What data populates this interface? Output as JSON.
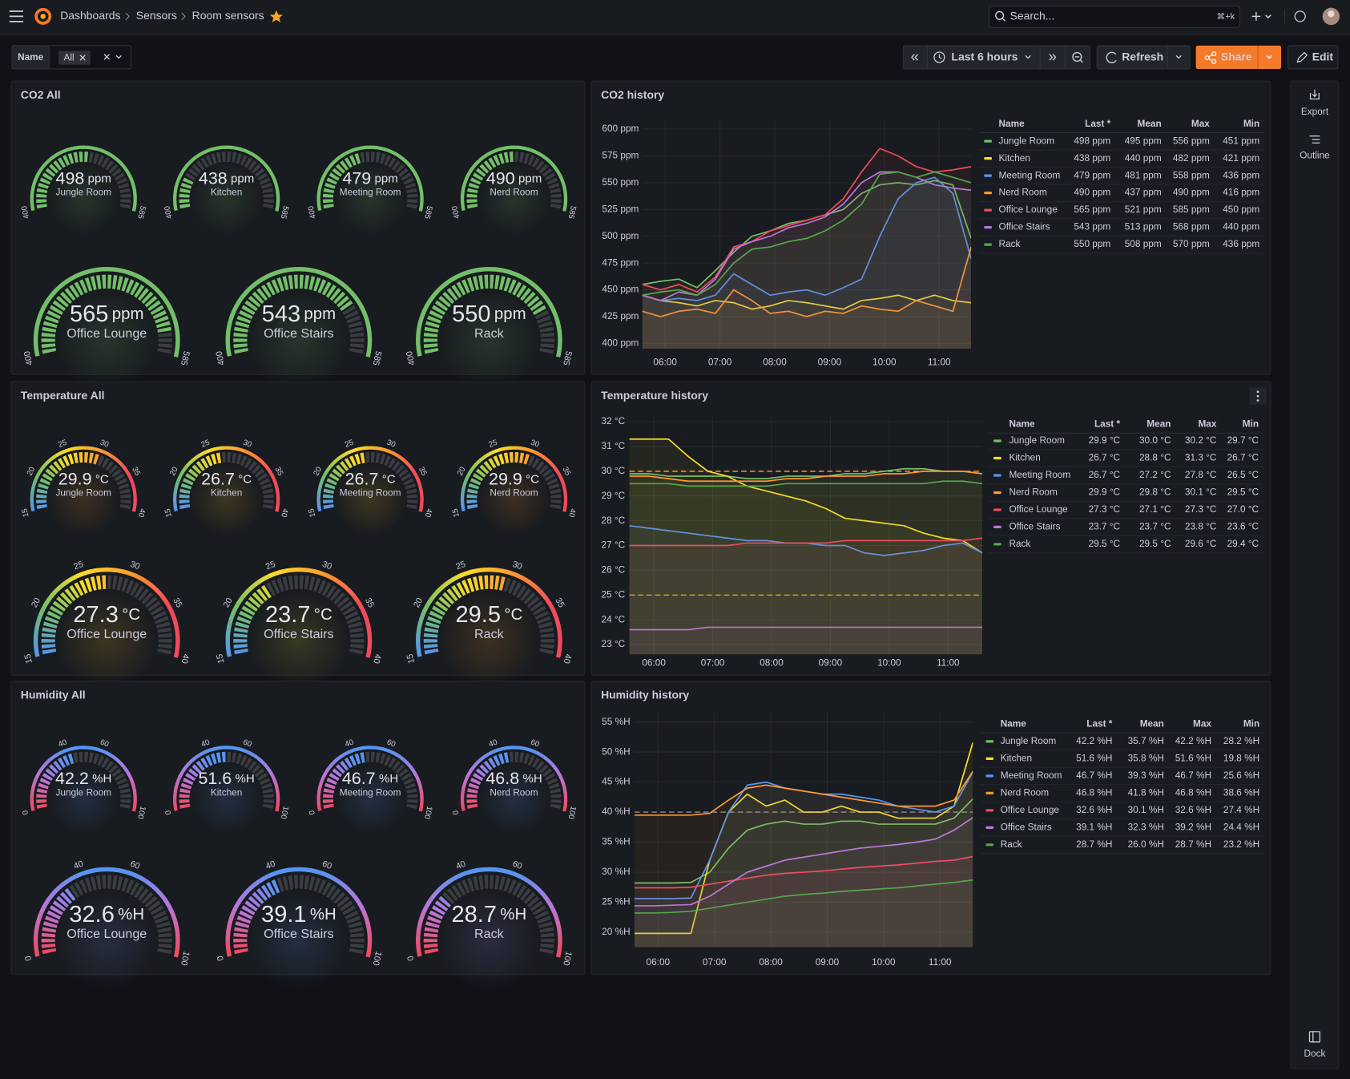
{
  "header": {
    "breadcrumbs": [
      "Dashboards",
      "Sensors",
      "Room sensors"
    ],
    "search": "Search...",
    "shortcut": "⌘+k"
  },
  "toolbar": {
    "variable": "Name",
    "variable_value": "All",
    "time_range": "Last 6 hours",
    "refresh": "Refresh",
    "share": "Share",
    "edit": "Edit"
  },
  "sidebar": {
    "export": "Export",
    "outline": "Outline",
    "dock": "Dock"
  },
  "gauge_panels": [
    {
      "title": "CO2 All",
      "unit": "ppm",
      "range": [
        400,
        585
      ],
      "ticks": [
        400,
        585
      ],
      "colors": [
        "#73bf69"
      ],
      "gauges": [
        {
          "name": "Jungle Room",
          "value": 498
        },
        {
          "name": "Kitchen",
          "value": 438
        },
        {
          "name": "Meeting Room",
          "value": 479
        },
        {
          "name": "Nerd Room",
          "value": 490
        },
        {
          "name": "Office Lounge",
          "value": 565
        },
        {
          "name": "Office Stairs",
          "value": 543
        },
        {
          "name": "Rack",
          "value": 550
        }
      ]
    },
    {
      "title": "Temperature All",
      "unit": "°C",
      "range": [
        15,
        40
      ],
      "ticks": [
        15,
        20,
        25,
        30,
        35,
        40
      ],
      "colors": [
        "#5794f2",
        "#73bf69",
        "#fade2a",
        "#ff9830",
        "#f2495c",
        "#f2495c"
      ],
      "gauges": [
        {
          "name": "Jungle Room",
          "value": 29.9
        },
        {
          "name": "Kitchen",
          "value": 26.7
        },
        {
          "name": "Meeting Room",
          "value": 26.7
        },
        {
          "name": "Nerd Room",
          "value": 29.9
        },
        {
          "name": "Office Lounge",
          "value": 27.3
        },
        {
          "name": "Office Stairs",
          "value": 23.7
        },
        {
          "name": "Rack",
          "value": 29.5
        }
      ]
    },
    {
      "title": "Humidity All",
      "unit": "%H",
      "range": [
        0,
        100
      ],
      "ticks": [
        0,
        40,
        60,
        100
      ],
      "colors": [
        "#f2495c",
        "#b877d9",
        "#5794f2",
        "#5794f2",
        "#b877d9",
        "#f2495c"
      ],
      "gauges": [
        {
          "name": "Jungle Room",
          "value": 42.2
        },
        {
          "name": "Kitchen",
          "value": 51.6
        },
        {
          "name": "Meeting Room",
          "value": 46.7
        },
        {
          "name": "Nerd Room",
          "value": 46.8
        },
        {
          "name": "Office Lounge",
          "value": 32.6
        },
        {
          "name": "Office Stairs",
          "value": 39.1
        },
        {
          "name": "Rack",
          "value": 28.7
        }
      ]
    }
  ],
  "chart_data": [
    {
      "type": "line",
      "title": "CO2 history",
      "x": [
        "05:35",
        "05:55",
        "06:15",
        "06:35",
        "06:55",
        "07:15",
        "07:35",
        "07:55",
        "08:15",
        "08:35",
        "08:55",
        "09:15",
        "09:35",
        "09:55",
        "10:15",
        "10:35",
        "10:55",
        "11:15",
        "11:35"
      ],
      "xlim": [
        "05:35",
        "11:35"
      ],
      "xticks": [
        "06:00",
        "07:00",
        "08:00",
        "09:00",
        "10:00",
        "11:00"
      ],
      "ylim": [
        395,
        608
      ],
      "yticks": [
        {
          "value": 400,
          "label": "400 ppm"
        },
        {
          "value": 425,
          "label": "425 ppm"
        },
        {
          "value": 450,
          "label": "450 ppm"
        },
        {
          "value": 475,
          "label": "475 ppm"
        },
        {
          "value": 500,
          "label": "500 ppm"
        },
        {
          "value": 525,
          "label": "525 ppm"
        },
        {
          "value": 550,
          "label": "550 ppm"
        },
        {
          "value": 575,
          "label": "575 ppm"
        },
        {
          "value": 600,
          "label": "600 ppm"
        }
      ],
      "grid": true,
      "legend_columns": [
        "Name",
        "Last *",
        "Mean",
        "Max",
        "Min"
      ],
      "series": [
        {
          "name": "Jungle Room",
          "color": "#73bf69",
          "values": [
            455,
            458,
            460,
            452,
            468,
            485,
            500,
            505,
            512,
            515,
            520,
            525,
            540,
            548,
            550,
            548,
            552,
            548,
            498
          ],
          "last": "498 ppm",
          "mean": "495 ppm",
          "max": "556 ppm",
          "min": "451 ppm"
        },
        {
          "name": "Kitchen",
          "color": "#fade2a",
          "values": [
            445,
            440,
            438,
            435,
            440,
            438,
            432,
            435,
            440,
            438,
            435,
            432,
            440,
            442,
            445,
            440,
            445,
            440,
            438
          ],
          "last": "438 ppm",
          "mean": "440 ppm",
          "max": "482 ppm",
          "min": "421 ppm"
        },
        {
          "name": "Meeting Room",
          "color": "#5794f2",
          "values": [
            445,
            440,
            442,
            440,
            445,
            465,
            455,
            445,
            448,
            450,
            445,
            452,
            460,
            500,
            535,
            550,
            555,
            540,
            479
          ],
          "last": "479 ppm",
          "mean": "481 ppm",
          "max": "558 ppm",
          "min": "436 ppm"
        },
        {
          "name": "Nerd Room",
          "color": "#ff9830",
          "values": [
            430,
            425,
            430,
            432,
            428,
            450,
            440,
            428,
            430,
            425,
            430,
            428,
            435,
            432,
            430,
            440,
            435,
            430,
            490
          ],
          "last": "490 ppm",
          "mean": "437 ppm",
          "max": "490 ppm",
          "min": "416 ppm"
        },
        {
          "name": "Office Lounge",
          "color": "#f2495c",
          "values": [
            455,
            450,
            455,
            448,
            462,
            490,
            495,
            505,
            510,
            515,
            520,
            535,
            560,
            582,
            575,
            565,
            560,
            562,
            565
          ],
          "last": "565 ppm",
          "mean": "521 ppm",
          "max": "585 ppm",
          "min": "450 ppm"
        },
        {
          "name": "Office Stairs",
          "color": "#b877d9",
          "values": [
            445,
            440,
            448,
            445,
            460,
            488,
            495,
            500,
            508,
            512,
            518,
            530,
            550,
            560,
            560,
            555,
            548,
            545,
            543
          ],
          "last": "543 ppm",
          "mean": "513 ppm",
          "max": "568 ppm",
          "min": "440 ppm"
        },
        {
          "name": "Rack",
          "color": "#56a64b",
          "values": [
            445,
            448,
            450,
            445,
            455,
            475,
            488,
            490,
            495,
            498,
            505,
            515,
            530,
            558,
            560,
            555,
            560,
            555,
            550
          ],
          "last": "550 ppm",
          "mean": "508 ppm",
          "max": "570 ppm",
          "min": "436 ppm"
        }
      ]
    },
    {
      "type": "line",
      "title": "Temperature history",
      "x": [
        "05:35",
        "05:55",
        "06:15",
        "06:35",
        "06:55",
        "07:15",
        "07:35",
        "07:55",
        "08:15",
        "08:35",
        "08:55",
        "09:15",
        "09:35",
        "09:55",
        "10:15",
        "10:35",
        "10:55",
        "11:15",
        "11:35"
      ],
      "xlim": [
        "05:35",
        "11:35"
      ],
      "xticks": [
        "06:00",
        "07:00",
        "08:00",
        "09:00",
        "10:00",
        "11:00"
      ],
      "ylim": [
        22.6,
        32.2
      ],
      "yticks": [
        {
          "value": 23,
          "label": "23 °C"
        },
        {
          "value": 24,
          "label": "24 °C"
        },
        {
          "value": 25,
          "label": "25 °C"
        },
        {
          "value": 26,
          "label": "26 °C"
        },
        {
          "value": 27,
          "label": "27 °C"
        },
        {
          "value": 28,
          "label": "28 °C"
        },
        {
          "value": 29,
          "label": "29 °C"
        },
        {
          "value": 30,
          "label": "30 °C"
        },
        {
          "value": 31,
          "label": "31 °C"
        },
        {
          "value": 32,
          "label": "32 °C"
        }
      ],
      "grid": true,
      "thresholds": [
        {
          "value": 30,
          "color": "#ff9830"
        },
        {
          "value": 25,
          "color": "#e0b400"
        }
      ],
      "legend_columns": [
        "Name",
        "Last *",
        "Mean",
        "Max",
        "Min"
      ],
      "series": [
        {
          "name": "Jungle Room",
          "color": "#73bf69",
          "values": [
            29.9,
            29.9,
            29.8,
            29.8,
            29.8,
            29.8,
            29.7,
            29.7,
            29.8,
            29.8,
            29.8,
            29.9,
            29.9,
            30.0,
            30.1,
            30.1,
            30.0,
            30.0,
            29.9
          ],
          "last": "29.9 °C",
          "mean": "30.0 °C",
          "max": "30.2 °C",
          "min": "29.7 °C"
        },
        {
          "name": "Kitchen",
          "color": "#fade2a",
          "values": [
            31.3,
            31.3,
            31.3,
            30.6,
            30.0,
            29.8,
            29.4,
            29.2,
            29.0,
            28.8,
            28.5,
            28.1,
            28.0,
            27.9,
            27.8,
            27.5,
            27.3,
            27.2,
            26.7
          ],
          "last": "26.7 °C",
          "mean": "28.8 °C",
          "max": "31.3 °C",
          "min": "26.7 °C"
        },
        {
          "name": "Meeting Room",
          "color": "#5794f2",
          "values": [
            27.8,
            27.7,
            27.6,
            27.5,
            27.4,
            27.3,
            27.2,
            27.2,
            27.1,
            27.1,
            27.0,
            27.0,
            26.7,
            26.6,
            26.7,
            26.8,
            27.0,
            27.1,
            26.7
          ],
          "last": "26.7 °C",
          "mean": "27.2 °C",
          "max": "27.8 °C",
          "min": "26.5 °C"
        },
        {
          "name": "Nerd Room",
          "color": "#ff9830",
          "values": [
            29.8,
            29.8,
            29.7,
            29.6,
            29.6,
            29.6,
            29.6,
            29.6,
            29.7,
            29.7,
            29.8,
            29.8,
            29.8,
            29.9,
            29.9,
            30.0,
            30.0,
            30.0,
            29.9
          ],
          "last": "29.9 °C",
          "mean": "29.8 °C",
          "max": "30.1 °C",
          "min": "29.5 °C"
        },
        {
          "name": "Office Lounge",
          "color": "#f2495c",
          "values": [
            27.0,
            27.0,
            27.0,
            27.0,
            27.0,
            27.0,
            27.1,
            27.1,
            27.1,
            27.1,
            27.1,
            27.2,
            27.2,
            27.2,
            27.2,
            27.2,
            27.2,
            27.2,
            27.3
          ],
          "last": "27.3 °C",
          "mean": "27.1 °C",
          "max": "27.3 °C",
          "min": "27.0 °C"
        },
        {
          "name": "Office Stairs",
          "color": "#b877d9",
          "values": [
            23.6,
            23.6,
            23.6,
            23.6,
            23.7,
            23.7,
            23.7,
            23.7,
            23.7,
            23.7,
            23.7,
            23.7,
            23.7,
            23.7,
            23.7,
            23.7,
            23.7,
            23.7,
            23.7
          ],
          "last": "23.7 °C",
          "mean": "23.7 °C",
          "max": "23.8 °C",
          "min": "23.6 °C"
        },
        {
          "name": "Rack",
          "color": "#56a64b",
          "values": [
            29.5,
            29.5,
            29.5,
            29.4,
            29.4,
            29.4,
            29.4,
            29.4,
            29.5,
            29.5,
            29.5,
            29.5,
            29.5,
            29.5,
            29.5,
            29.5,
            29.6,
            29.6,
            29.5
          ],
          "last": "29.5 °C",
          "mean": "29.5 °C",
          "max": "29.6 °C",
          "min": "29.4 °C"
        }
      ]
    },
    {
      "type": "line",
      "title": "Humidity history",
      "x": [
        "05:35",
        "05:55",
        "06:15",
        "06:35",
        "06:55",
        "07:15",
        "07:35",
        "07:55",
        "08:15",
        "08:35",
        "08:55",
        "09:15",
        "09:35",
        "09:55",
        "10:15",
        "10:35",
        "10:55",
        "11:15",
        "11:35"
      ],
      "xlim": [
        "05:35",
        "11:35"
      ],
      "xticks": [
        "06:00",
        "07:00",
        "08:00",
        "09:00",
        "10:00",
        "11:00"
      ],
      "ylim": [
        17.5,
        56.5
      ],
      "yticks": [
        {
          "value": 20,
          "label": "20 %H"
        },
        {
          "value": 25,
          "label": "25 %H"
        },
        {
          "value": 30,
          "label": "30 %H"
        },
        {
          "value": 35,
          "label": "35 %H"
        },
        {
          "value": 40,
          "label": "40 %H"
        },
        {
          "value": 45,
          "label": "45 %H"
        },
        {
          "value": 50,
          "label": "50 %H"
        },
        {
          "value": 55,
          "label": "55 %H"
        }
      ],
      "grid": true,
      "thresholds": [
        {
          "value": 40,
          "color": "#8e8e9a"
        }
      ],
      "legend_columns": [
        "Name",
        "Last *",
        "Mean",
        "Max",
        "Min"
      ],
      "series": [
        {
          "name": "Jungle Room",
          "color": "#73bf69",
          "values": [
            28.2,
            28.2,
            28.2,
            28.3,
            30,
            34,
            37,
            38,
            38.5,
            38,
            38,
            38.5,
            38.5,
            38,
            38,
            38,
            38,
            39,
            42.2
          ],
          "last": "42.2 %H",
          "mean": "35.7 %H",
          "max": "42.2 %H",
          "min": "28.2 %H"
        },
        {
          "name": "Kitchen",
          "color": "#fade2a",
          "values": [
            19.8,
            19.8,
            19.8,
            19.8,
            32,
            40,
            43,
            41,
            42,
            40,
            40,
            41,
            40,
            40,
            39,
            39,
            39,
            41,
            51.6
          ],
          "last": "51.6 %H",
          "mean": "35.8 %H",
          "max": "51.6 %H",
          "min": "19.8 %H"
        },
        {
          "name": "Meeting Room",
          "color": "#5794f2",
          "values": [
            25.6,
            25.6,
            25.6,
            25.7,
            32,
            40,
            44.5,
            45,
            44,
            43.5,
            43,
            43,
            42.5,
            42,
            41,
            40.5,
            40,
            41,
            46.7
          ],
          "last": "46.7 %H",
          "mean": "39.3 %H",
          "max": "46.7 %H",
          "min": "25.6 %H"
        },
        {
          "name": "Nerd Room",
          "color": "#ff9830",
          "values": [
            39.5,
            39.5,
            39.5,
            39.5,
            39.8,
            42,
            44,
            44.5,
            44,
            43.5,
            43,
            42.5,
            42,
            41.5,
            41,
            41,
            41,
            42,
            46.8
          ],
          "last": "46.8 %H",
          "mean": "41.8 %H",
          "max": "46.8 %H",
          "min": "38.6 %H"
        },
        {
          "name": "Office Lounge",
          "color": "#f2495c",
          "values": [
            27.4,
            27.4,
            27.4,
            27.5,
            28,
            28.5,
            29,
            29.5,
            29.8,
            30,
            30.2,
            30.5,
            30.8,
            31,
            31.2,
            31.5,
            31.8,
            32,
            32.6
          ],
          "last": "32.6 %H",
          "mean": "30.1 %H",
          "max": "32.6 %H",
          "min": "27.4 %H"
        },
        {
          "name": "Office Stairs",
          "color": "#b877d9",
          "values": [
            24.4,
            24.4,
            24.5,
            24.6,
            26,
            28,
            30,
            31,
            32,
            32.5,
            33,
            33.5,
            34,
            34.3,
            34.6,
            35,
            35.5,
            37,
            39.1
          ],
          "last": "39.1 %H",
          "mean": "32.3 %H",
          "max": "39.2 %H",
          "min": "24.4 %H"
        },
        {
          "name": "Rack",
          "color": "#56a64b",
          "values": [
            23.2,
            23.2,
            23.3,
            23.5,
            24,
            24.5,
            25,
            25.5,
            26,
            26.3,
            26.5,
            26.8,
            27,
            27.2,
            27.4,
            27.7,
            28,
            28.3,
            28.7
          ],
          "last": "28.7 %H",
          "mean": "26.0 %H",
          "max": "28.7 %H",
          "min": "23.2 %H"
        }
      ]
    }
  ]
}
